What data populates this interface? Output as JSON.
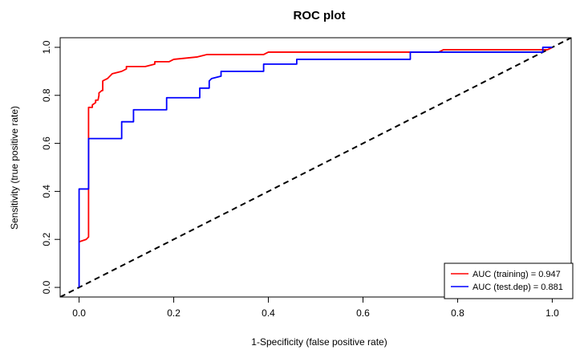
{
  "chart_data": {
    "type": "line",
    "title": "ROC plot",
    "xlabel": "1-Specificity (false positive rate)",
    "ylabel": "Sensitivity (true positive rate)",
    "xlim": [
      -0.04,
      1.04
    ],
    "ylim": [
      -0.04,
      1.04
    ],
    "x_ticks": [
      "0.0",
      "0.2",
      "0.4",
      "0.6",
      "0.8",
      "1.0"
    ],
    "y_ticks": [
      "0.0",
      "0.2",
      "0.4",
      "0.6",
      "0.8",
      "1.0"
    ],
    "grid": false,
    "legend_position": "bottom-right",
    "series": [
      {
        "name": "AUC (training) = 0.947",
        "color": "#ff0000",
        "points": [
          [
            0,
            0.19
          ],
          [
            0.015,
            0.2
          ],
          [
            0.02,
            0.21
          ],
          [
            0.02,
            0.75
          ],
          [
            0.028,
            0.75
          ],
          [
            0.028,
            0.76
          ],
          [
            0.035,
            0.77
          ],
          [
            0.035,
            0.78
          ],
          [
            0.04,
            0.78
          ],
          [
            0.042,
            0.8
          ],
          [
            0.042,
            0.81
          ],
          [
            0.048,
            0.82
          ],
          [
            0.05,
            0.82
          ],
          [
            0.05,
            0.86
          ],
          [
            0.06,
            0.87
          ],
          [
            0.07,
            0.89
          ],
          [
            0.09,
            0.9
          ],
          [
            0.1,
            0.91
          ],
          [
            0.1,
            0.92
          ],
          [
            0.14,
            0.92
          ],
          [
            0.16,
            0.93
          ],
          [
            0.16,
            0.94
          ],
          [
            0.19,
            0.94
          ],
          [
            0.2,
            0.95
          ],
          [
            0.25,
            0.96
          ],
          [
            0.27,
            0.97
          ],
          [
            0.39,
            0.97
          ],
          [
            0.4,
            0.98
          ],
          [
            0.76,
            0.98
          ],
          [
            0.77,
            0.99
          ],
          [
            0.99,
            0.99
          ],
          [
            1.0,
            1.0
          ]
        ]
      },
      {
        "name": "AUC (test.dep) = 0.881",
        "color": "#0000ff",
        "points": [
          [
            0,
            0
          ],
          [
            0,
            0.41
          ],
          [
            0.02,
            0.41
          ],
          [
            0.02,
            0.62
          ],
          [
            0.09,
            0.62
          ],
          [
            0.09,
            0.69
          ],
          [
            0.115,
            0.69
          ],
          [
            0.115,
            0.74
          ],
          [
            0.185,
            0.74
          ],
          [
            0.185,
            0.79
          ],
          [
            0.255,
            0.79
          ],
          [
            0.255,
            0.83
          ],
          [
            0.275,
            0.83
          ],
          [
            0.275,
            0.86
          ],
          [
            0.28,
            0.87
          ],
          [
            0.3,
            0.88
          ],
          [
            0.3,
            0.9
          ],
          [
            0.39,
            0.9
          ],
          [
            0.39,
            0.93
          ],
          [
            0.46,
            0.93
          ],
          [
            0.46,
            0.95
          ],
          [
            0.7,
            0.95
          ],
          [
            0.7,
            0.98
          ],
          [
            0.98,
            0.98
          ],
          [
            0.98,
            1.0
          ],
          [
            1.0,
            1.0
          ]
        ]
      }
    ],
    "reference_line": {
      "points": [
        [
          0,
          0
        ],
        [
          1,
          1
        ]
      ],
      "color": "#000000",
      "style": "dashed"
    }
  }
}
